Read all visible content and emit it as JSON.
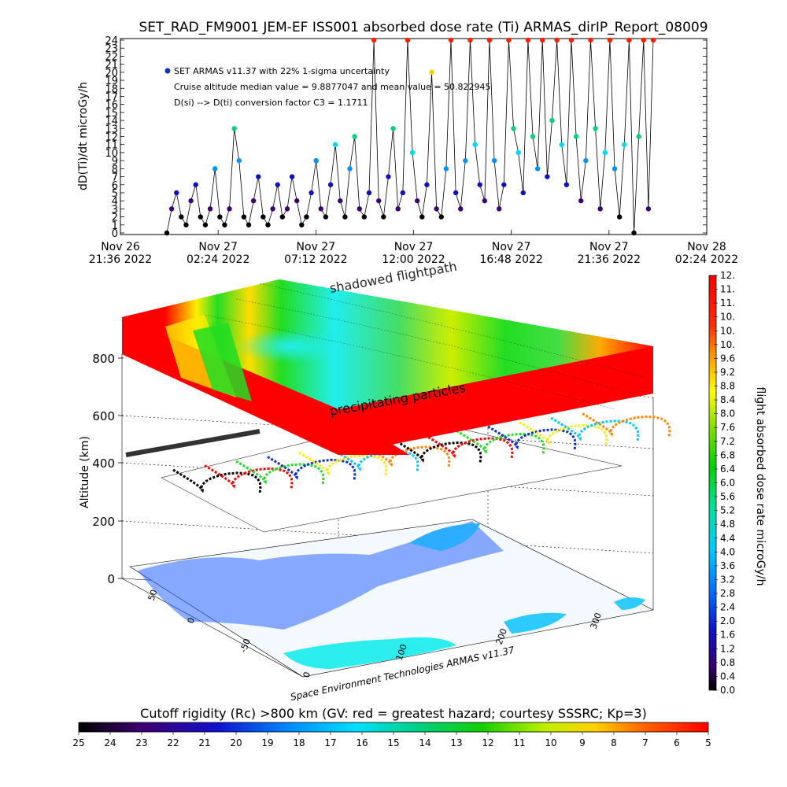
{
  "header": {
    "title": "SET_RAD_FM9001  JEM-EF ISS001 absorbed dose rate (Ti) ARMAS_dirIP_Report_08009"
  },
  "colors": {
    "series_dot": "#1030c0",
    "hazard_red": "#ff0000",
    "hazard_green": "#22dd22",
    "hazard_cyan": "#22eeee",
    "hazard_yellow": "#ffee00"
  },
  "chart_data": [
    {
      "type": "line",
      "ylabel": "dD(Ti)/dt microGy/h",
      "xlabel": "",
      "ylim": [
        0,
        24
      ],
      "ytick_labels": [
        "0",
        "1",
        "2",
        "3",
        "4",
        "5",
        "6",
        "7",
        "8",
        "9",
        "10",
        "11",
        "12",
        "13",
        "14",
        "15",
        "16",
        "17",
        "18",
        "19",
        "20",
        "21",
        "22",
        "23",
        "24"
      ],
      "x_tick_labels": [
        {
          "top": "Nov 26",
          "bottom": "21:36 2022"
        },
        {
          "top": "Nov 27",
          "bottom": "02:24 2022"
        },
        {
          "top": "Nov 27",
          "bottom": "07:12 2022"
        },
        {
          "top": "Nov 27",
          "bottom": "12:00 2022"
        },
        {
          "top": "Nov 27",
          "bottom": "16:48 2022"
        },
        {
          "top": "Nov 27",
          "bottom": "21:36 2022"
        },
        {
          "top": "Nov 28",
          "bottom": "02:24 2022"
        }
      ],
      "legend_marker": "SET ARMAS v11.37 with 22% 1-sigma uncertainty",
      "annotations": [
        "Cruise altitude median value = 9.8877047 and mean value = 50.822945",
        "D(si) --> D(ti) conversion factor C3 = 1.1711"
      ],
      "series": [
        {
          "values": [
            0,
            3,
            5,
            2,
            1,
            4,
            6,
            2,
            1,
            3,
            8,
            2,
            1,
            3,
            13,
            9,
            2,
            1,
            4,
            7,
            2,
            1,
            3,
            6,
            2,
            3,
            7,
            4,
            1,
            2,
            5,
            9,
            3,
            2,
            6,
            11,
            4,
            2,
            8,
            12,
            3,
            2,
            5,
            24,
            4,
            2,
            7,
            13,
            3,
            5,
            24,
            10,
            4,
            2,
            6,
            20,
            3,
            2,
            8,
            24,
            5,
            3,
            9,
            24,
            11,
            6,
            4,
            24,
            9,
            3,
            6,
            24,
            13,
            10,
            5,
            24,
            12,
            8,
            24,
            7,
            14,
            24,
            11,
            6,
            24,
            12,
            4,
            9,
            24,
            13,
            3,
            10,
            24,
            8,
            2,
            11,
            24,
            0,
            12,
            24,
            3,
            24
          ]
        }
      ]
    },
    {
      "type": "heatmap",
      "colorbar_label": "flight absorbed dose rate microGy/h",
      "colorbar_ticks": [
        "0.0",
        "0.4",
        "0.8",
        "1.2",
        "1.6",
        "2.0",
        "2.4",
        "2.8",
        "3.2",
        "3.6",
        "4.0",
        "4.4",
        "4.8",
        "5.2",
        "5.6",
        "6.0",
        "6.4",
        "6.8",
        "7.2",
        "7.6",
        "8.0",
        "8.4",
        "8.8",
        "9.2",
        "9.6",
        "10.",
        "10.",
        "10.",
        "11.",
        "11.",
        "12."
      ],
      "zlabel": "Altitude (km)",
      "ztick_labels": [
        "0",
        "200",
        "400",
        "600",
        "800"
      ],
      "lat_tick_labels": [
        "50",
        "0",
        "-50"
      ],
      "lon_tick_labels": [
        "0",
        "100",
        "200",
        "300"
      ],
      "layer_labels": [
        "shadowed flightpath",
        "precipitating particles"
      ],
      "credit": "Space Environment Technologies ARMAS v11.37",
      "bottom_bar": {
        "title": "Cutoff rigidity (Rc) >800 km (GV: red = greatest hazard; courtesy SSSRC; Kp=3)",
        "ticks": [
          "25",
          "24",
          "23",
          "22",
          "21",
          "20",
          "19",
          "18",
          "17",
          "16",
          "15",
          "14",
          "13",
          "12",
          "11",
          "10",
          "9",
          "8",
          "7",
          "6",
          "5"
        ]
      }
    }
  ]
}
